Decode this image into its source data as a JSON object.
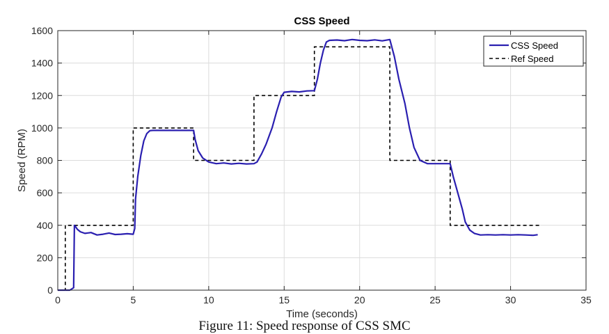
{
  "caption": "Figure 11: Speed response of CSS SMC",
  "colors": {
    "css_speed": "#2a1fb0",
    "ref_speed": "#000000",
    "grid": "#dcdcdc",
    "axes": "#262626"
  },
  "chart_data": {
    "type": "line",
    "title": "CSS Speed",
    "xlabel": "Time (seconds)",
    "ylabel": "Speed (RPM)",
    "xlim": [
      0,
      35
    ],
    "ylim": [
      0,
      1600
    ],
    "xticks": [
      0,
      5,
      10,
      15,
      20,
      25,
      30,
      35
    ],
    "yticks": [
      0,
      200,
      400,
      600,
      800,
      1000,
      1200,
      1400,
      1600
    ],
    "grid": true,
    "legend_position": "top-right",
    "series": [
      {
        "name": "CSS Speed",
        "style": "solid",
        "x": [
          0,
          0.8,
          1.05,
          1.1,
          1.15,
          1.3,
          1.5,
          1.8,
          2.2,
          2.6,
          3.0,
          3.4,
          3.8,
          4.2,
          4.6,
          5.0,
          5.1,
          5.15,
          5.3,
          5.5,
          5.7,
          5.9,
          6.1,
          6.3,
          6.5,
          7.0,
          8.0,
          9.0,
          9.1,
          9.3,
          9.6,
          10.0,
          10.5,
          11.0,
          11.5,
          12.0,
          12.5,
          13.0,
          13.2,
          13.5,
          13.8,
          14.0,
          14.2,
          14.5,
          14.8,
          15.0,
          15.5,
          16.0,
          16.5,
          17.0,
          17.2,
          17.4,
          17.6,
          17.8,
          18.0,
          18.5,
          19.0,
          19.5,
          20.0,
          20.5,
          21.0,
          21.5,
          22.0,
          22.3,
          22.6,
          23.0,
          23.3,
          23.6,
          24.0,
          24.5,
          25.0,
          25.5,
          26.0,
          26.2,
          26.5,
          26.8,
          27.0,
          27.3,
          27.6,
          28.0,
          28.5,
          29.0,
          29.5,
          30.0,
          30.5,
          31.0,
          31.5,
          31.8
        ],
        "y": [
          0,
          0,
          15,
          400,
          395,
          375,
          360,
          350,
          355,
          340,
          345,
          352,
          343,
          345,
          348,
          345,
          380,
          560,
          700,
          830,
          920,
          965,
          983,
          985,
          985,
          985,
          985,
          985,
          930,
          860,
          815,
          790,
          780,
          784,
          778,
          782,
          778,
          780,
          790,
          840,
          900,
          950,
          1000,
          1100,
          1190,
          1220,
          1225,
          1222,
          1228,
          1230,
          1300,
          1400,
          1480,
          1530,
          1540,
          1542,
          1538,
          1545,
          1540,
          1538,
          1543,
          1537,
          1545,
          1440,
          1300,
          1150,
          1000,
          880,
          800,
          780,
          780,
          780,
          780,
          700,
          600,
          500,
          420,
          370,
          350,
          340,
          342,
          340,
          342,
          340,
          342,
          340,
          338,
          342
        ]
      },
      {
        "name": "Ref Speed",
        "style": "dashed",
        "x": [
          0,
          0.5,
          0.5,
          5.0,
          5.0,
          9.0,
          9.0,
          13.0,
          13.0,
          17.0,
          17.0,
          22.0,
          22.0,
          26.0,
          26.0,
          32.0
        ],
        "y": [
          0,
          0,
          400,
          400,
          1000,
          1000,
          800,
          800,
          1200,
          1200,
          1500,
          1500,
          800,
          800,
          400,
          400
        ]
      }
    ]
  }
}
